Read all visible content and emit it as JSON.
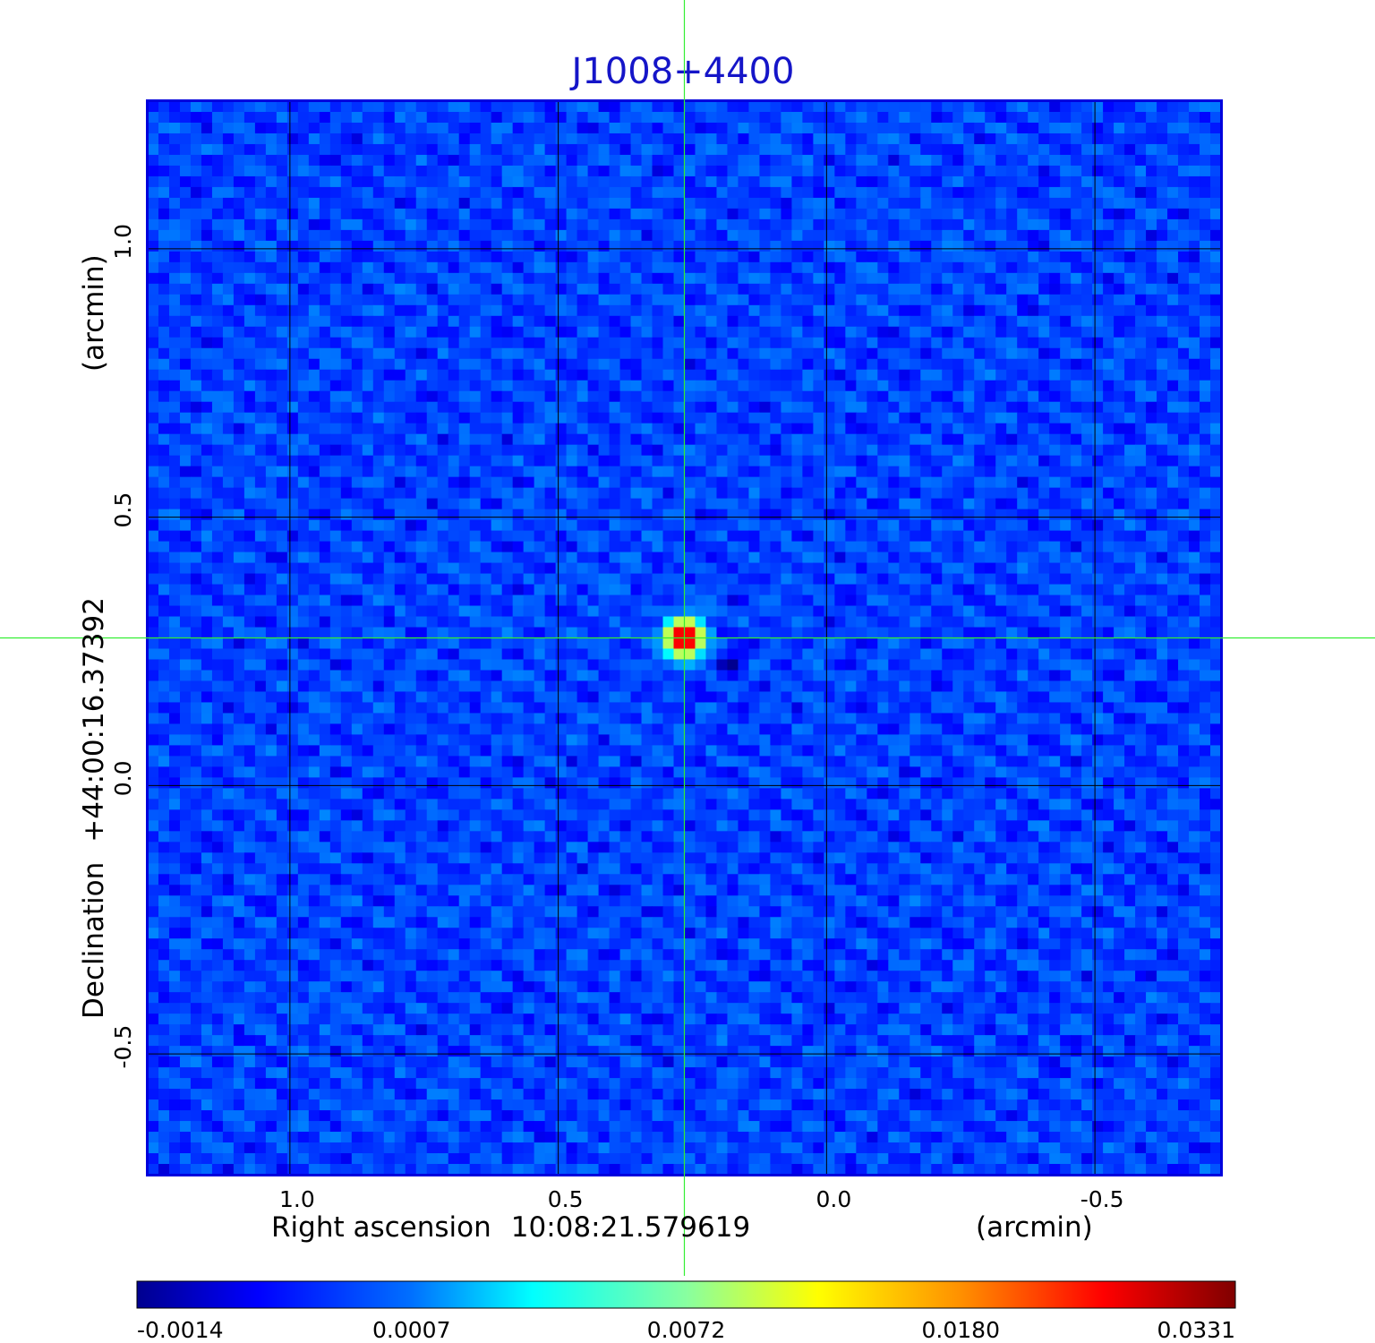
{
  "chart_data": {
    "type": "heatmap",
    "title": "J1008+4400",
    "xlabel": "Right ascension",
    "xlabel_center": "10:08:21.579619",
    "xlabel_unit": "(arcmin)",
    "ylabel": "Declination",
    "ylabel_center": "+44:00:16.37392",
    "ylabel_unit": "(arcmin)",
    "xlim": [
      1.265,
      -0.735
    ],
    "ylim": [
      -0.725,
      1.275
    ],
    "x_ticks": [
      1.0,
      0.5,
      0.0,
      -0.5
    ],
    "x_tick_labels": [
      "1.0",
      "0.5",
      "0.0",
      "-0.5"
    ],
    "y_ticks": [
      -0.5,
      0.0,
      0.5,
      1.0
    ],
    "y_tick_labels": [
      "-0.5",
      "0.0",
      "0.5",
      "1.0"
    ],
    "grid": true,
    "crosshair": {
      "x": 0.265,
      "y": 0.275
    },
    "source_peak": {
      "x": 0.265,
      "y": 0.275,
      "value": 0.0331
    },
    "background_level": 0.0002,
    "colorbar": {
      "colormap": "jet",
      "ticks": [
        "-0.0014",
        "0.0007",
        "0.0072",
        "0.0180",
        "0.0331"
      ],
      "tick_values": [
        -0.0014,
        0.0007,
        0.0072,
        0.018,
        0.0331
      ],
      "placement": "bottom"
    },
    "colors": {
      "title": "#1515c8",
      "frame": "#0000dd",
      "grid": "#000000",
      "crosshair": "#33ee33"
    }
  }
}
